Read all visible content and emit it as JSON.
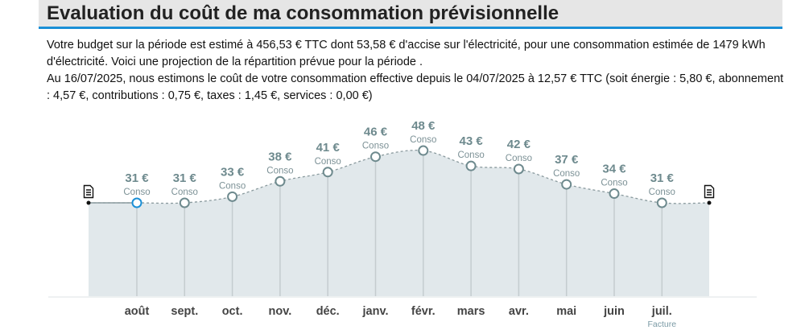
{
  "header": {
    "title": "Evaluation du coût de ma consommation prévisionnelle"
  },
  "text": {
    "line1": "Votre budget sur la période est estimé à 456,53 € TTC dont 53,58 € d'accise sur l'électricité, pour une consommation estimée de 1479 kWh d'électricité. Voici une projection de la répartition prévue pour la période   .",
    "line2": "Au 16/07/2025, nous estimons le coût de votre consommation effective depuis le 04/07/2025 à 12,57 € TTC (soit énergie : 5,80 €, abonnement : 4,57 €, contributions : 0,75 €, taxes : 1,45 €, services : 0,00 €)"
  },
  "chart_data": {
    "type": "area",
    "categories": [
      "août",
      "sept.",
      "oct.",
      "nov.",
      "déc.",
      "janv.",
      "févr.",
      "mars",
      "avr.",
      "mai",
      "juin",
      "juil."
    ],
    "values": [
      31,
      31,
      33,
      38,
      41,
      46,
      48,
      43,
      42,
      37,
      34,
      31
    ],
    "value_labels": [
      "31 €",
      "31 €",
      "33 €",
      "38 €",
      "41 €",
      "46 €",
      "48 €",
      "43 €",
      "42 €",
      "37 €",
      "34 €",
      "31 €"
    ],
    "point_label": "Conso",
    "sublabels": {
      "juil.": "Facture"
    },
    "current_index": 0,
    "colors": {
      "fill": "#e1e8eb",
      "line": "#8a9a9e",
      "current": "#1a8fd6",
      "point": "#6e8a8e"
    },
    "icons": [
      "document-icon-start",
      "document-icon-end"
    ]
  }
}
